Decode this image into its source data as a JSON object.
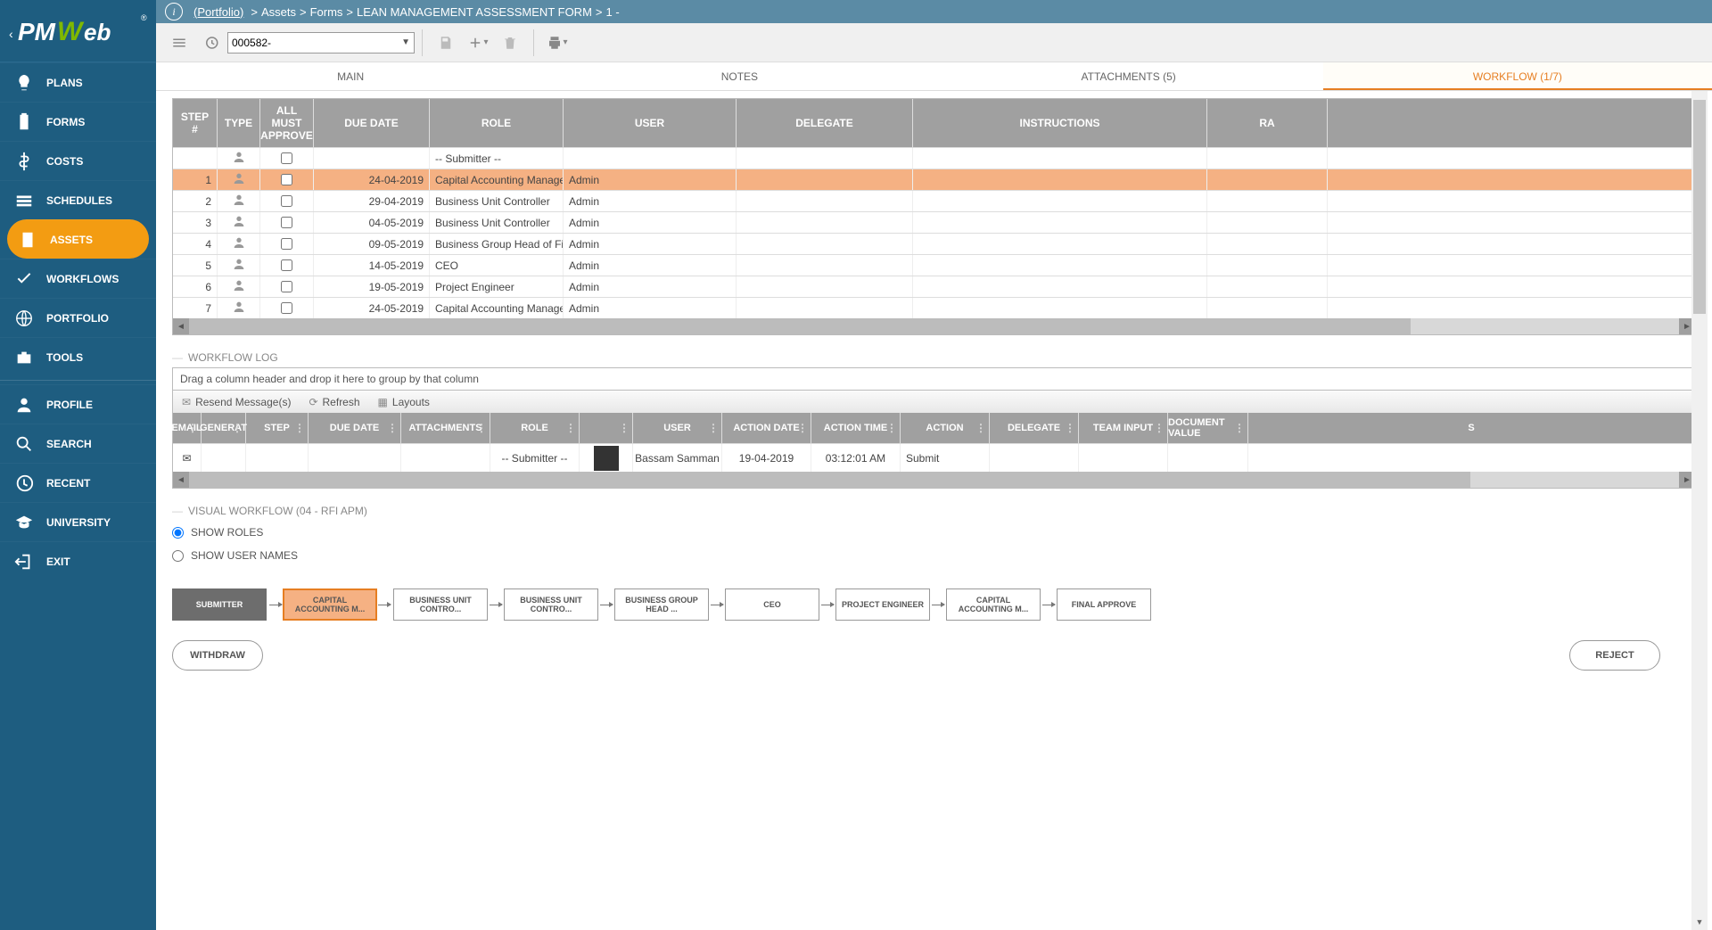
{
  "logo_text": "PMWeb",
  "sidebar": {
    "items": [
      {
        "label": "PLANS",
        "icon": "bulb"
      },
      {
        "label": "FORMS",
        "icon": "clipboard"
      },
      {
        "label": "COSTS",
        "icon": "dollar"
      },
      {
        "label": "SCHEDULES",
        "icon": "bars"
      },
      {
        "label": "ASSETS",
        "icon": "building",
        "active": true
      },
      {
        "label": "WORKFLOWS",
        "icon": "check"
      },
      {
        "label": "PORTFOLIO",
        "icon": "globe"
      },
      {
        "label": "TOOLS",
        "icon": "briefcase"
      },
      {
        "label": "PROFILE",
        "icon": "person"
      },
      {
        "label": "SEARCH",
        "icon": "search"
      },
      {
        "label": "RECENT",
        "icon": "history"
      },
      {
        "label": "UNIVERSITY",
        "icon": "grad"
      },
      {
        "label": "EXIT",
        "icon": "exit"
      }
    ]
  },
  "breadcrumb": {
    "root": "(Portfolio)",
    "parts": [
      "Assets",
      "Forms",
      "LEAN MANAGEMENT ASSESSMENT FORM",
      "1 -"
    ]
  },
  "record_selector": "000582-",
  "tabs": {
    "main": "MAIN",
    "notes": "NOTES",
    "attachments": "ATTACHMENTS (5)",
    "workflow": "WORKFLOW (1/7)"
  },
  "steps": {
    "columns": {
      "step": "STEP #",
      "type": "TYPE",
      "allmust": "ALL MUST APPROVE",
      "due": "DUE DATE",
      "role": "ROLE",
      "user": "USER",
      "delegate": "DELEGATE",
      "inst": "INSTRUCTIONS",
      "rating": "RA"
    },
    "rows": [
      {
        "step": "",
        "due": "",
        "role": "-- Submitter --",
        "user": "",
        "sel": false
      },
      {
        "step": "1",
        "due": "24-04-2019",
        "role": "Capital Accounting Manage",
        "user": "Admin",
        "sel": true
      },
      {
        "step": "2",
        "due": "29-04-2019",
        "role": "Business Unit Controller",
        "user": "Admin",
        "sel": false
      },
      {
        "step": "3",
        "due": "04-05-2019",
        "role": "Business Unit Controller",
        "user": "Admin",
        "sel": false
      },
      {
        "step": "4",
        "due": "09-05-2019",
        "role": "Business Group Head of Fi",
        "user": "Admin",
        "sel": false
      },
      {
        "step": "5",
        "due": "14-05-2019",
        "role": "CEO",
        "user": "Admin",
        "sel": false
      },
      {
        "step": "6",
        "due": "19-05-2019",
        "role": "Project Engineer",
        "user": "Admin",
        "sel": false
      },
      {
        "step": "7",
        "due": "24-05-2019",
        "role": "Capital Accounting Manage",
        "user": "Admin",
        "sel": false
      }
    ]
  },
  "log": {
    "title": "WORKFLOW LOG",
    "groupby_hint": "Drag a column header and drop it here to group by that column",
    "toolbar": {
      "resend": "Resend Message(s)",
      "refresh": "Refresh",
      "layouts": "Layouts"
    },
    "columns": {
      "email": "EMAIL",
      "gen": "GENERAT",
      "step": "STEP",
      "due": "DUE DATE",
      "att": "ATTACHMENTS",
      "role": "ROLE",
      "avatar": "",
      "user": "USER",
      "adate": "ACTION DATE",
      "atime": "ACTION TIME",
      "action": "ACTION",
      "delegate": "DELEGATE",
      "team": "TEAM INPUT",
      "doc": "DOCUMENT VALUE",
      "status": "S"
    },
    "row": {
      "role": "-- Submitter --",
      "user": "Bassam Samman",
      "adate": "19-04-2019",
      "atime": "03:12:01 AM",
      "action": "Submit"
    }
  },
  "visual": {
    "title": "VISUAL WORKFLOW (04 - RFI APM)",
    "show_roles": "SHOW ROLES",
    "show_users": "SHOW USER NAMES",
    "nodes": [
      {
        "label": "SUBMITTER",
        "kind": "submitter"
      },
      {
        "label": "CAPITAL ACCOUNTING M...",
        "kind": "current"
      },
      {
        "label": "BUSINESS UNIT CONTRO...",
        "kind": "normal"
      },
      {
        "label": "BUSINESS UNIT CONTRO...",
        "kind": "normal"
      },
      {
        "label": "BUSINESS GROUP HEAD ...",
        "kind": "normal"
      },
      {
        "label": "CEO",
        "kind": "normal"
      },
      {
        "label": "PROJECT ENGINEER",
        "kind": "normal"
      },
      {
        "label": "CAPITAL ACCOUNTING M...",
        "kind": "normal"
      },
      {
        "label": "FINAL APPROVE",
        "kind": "normal"
      }
    ],
    "withdraw": "WITHDRAW",
    "reject": "REJECT"
  },
  "colors": {
    "sidebar_bg": "#1e5d80",
    "active": "#f39c12",
    "crumb": "#5b8ba5",
    "sel_row": "#f5b183",
    "accent": "#e67e22"
  }
}
